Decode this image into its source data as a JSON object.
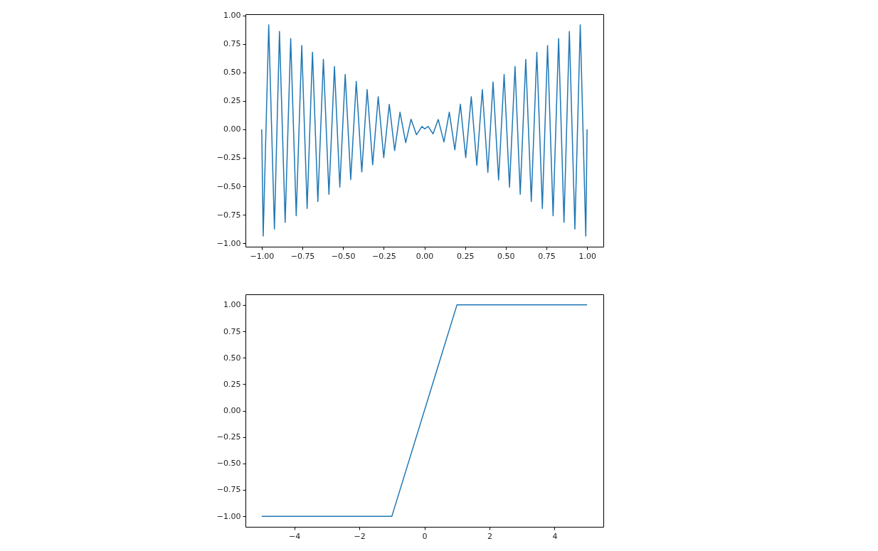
{
  "chart_data": [
    {
      "type": "line",
      "x": [
        -1.0,
        -0.991,
        -0.957,
        -0.922,
        -0.891,
        -0.856,
        -0.822,
        -0.788,
        -0.754,
        -0.721,
        -0.688,
        -0.655,
        -0.621,
        -0.587,
        -0.553,
        -0.52,
        -0.487,
        -0.453,
        -0.419,
        -0.385,
        -0.352,
        -0.318,
        -0.284,
        -0.25,
        -0.216,
        -0.183,
        -0.15,
        -0.115,
        -0.082,
        -0.049,
        -0.015,
        0.001,
        0.023,
        0.053,
        0.085,
        0.12,
        0.153,
        0.187,
        0.221,
        0.254,
        0.288,
        0.322,
        0.356,
        0.39,
        0.422,
        0.456,
        0.49,
        0.523,
        0.557,
        0.589,
        0.623,
        0.657,
        0.691,
        0.725,
        0.757,
        0.791,
        0.825,
        0.858,
        0.891,
        0.925,
        0.958,
        0.992,
        1.0
      ],
      "series": [
        {
          "color": "#1f77b4",
          "values": [
            0.0,
            -0.937,
            0.917,
            -0.875,
            0.858,
            -0.816,
            0.797,
            -0.758,
            0.735,
            -0.695,
            0.676,
            -0.633,
            0.614,
            -0.57,
            0.551,
            -0.507,
            0.482,
            -0.441,
            0.42,
            -0.374,
            0.349,
            -0.311,
            0.286,
            -0.248,
            0.219,
            -0.186,
            0.15,
            -0.117,
            0.088,
            -0.048,
            0.025,
            0.004,
            0.025,
            -0.04,
            0.086,
            -0.111,
            0.15,
            -0.18,
            0.221,
            -0.248,
            0.286,
            -0.315,
            0.349,
            -0.378,
            0.415,
            -0.445,
            0.482,
            -0.507,
            0.551,
            -0.57,
            0.614,
            -0.633,
            0.676,
            -0.695,
            0.735,
            -0.758,
            0.797,
            -0.816,
            0.858,
            -0.875,
            0.917,
            -0.937,
            0.0
          ]
        }
      ],
      "xlim": [
        -1.1,
        1.1
      ],
      "ylim": [
        -1.03,
        1.01
      ],
      "xticks": [
        {
          "value": -1,
          "label": "−1.00"
        },
        {
          "value": -0.75,
          "label": "−0.75"
        },
        {
          "value": -0.5,
          "label": "−0.50"
        },
        {
          "value": -0.25,
          "label": "−0.25"
        },
        {
          "value": 0,
          "label": "0.00"
        },
        {
          "value": 0.25,
          "label": "0.25"
        },
        {
          "value": 0.5,
          "label": "0.50"
        },
        {
          "value": 0.75,
          "label": "0.75"
        },
        {
          "value": 1,
          "label": "1.00"
        }
      ],
      "yticks": [
        {
          "value": -1,
          "label": "−1.00"
        },
        {
          "value": -0.75,
          "label": "−0.75"
        },
        {
          "value": -0.5,
          "label": "−0.50"
        },
        {
          "value": -0.25,
          "label": "−0.25"
        },
        {
          "value": 0,
          "label": "0.00"
        },
        {
          "value": 0.25,
          "label": "0.25"
        },
        {
          "value": 0.5,
          "label": "0.50"
        },
        {
          "value": 0.75,
          "label": "0.75"
        },
        {
          "value": 1,
          "label": "1.00"
        }
      ]
    },
    {
      "type": "line",
      "x": [
        -5,
        -1,
        1,
        5
      ],
      "series": [
        {
          "color": "#1f77b4",
          "values": [
            -1,
            -1,
            1,
            1
          ]
        }
      ],
      "xlim": [
        -5.5,
        5.5
      ],
      "ylim": [
        -1.1,
        1.1
      ],
      "xticks": [
        {
          "value": -4,
          "label": "−4"
        },
        {
          "value": -2,
          "label": "−2"
        },
        0,
        2,
        4
      ],
      "yticks": [
        {
          "value": -1,
          "label": "−1.00"
        },
        {
          "value": -0.75,
          "label": "−0.75"
        },
        {
          "value": -0.5,
          "label": "−0.50"
        },
        {
          "value": -0.25,
          "label": "−0.25"
        },
        {
          "value": 0,
          "label": "0.00"
        },
        {
          "value": 0.25,
          "label": "0.25"
        },
        {
          "value": 0.5,
          "label": "0.50"
        },
        {
          "value": 0.75,
          "label": "0.75"
        },
        {
          "value": 1,
          "label": "1.00"
        }
      ]
    }
  ]
}
